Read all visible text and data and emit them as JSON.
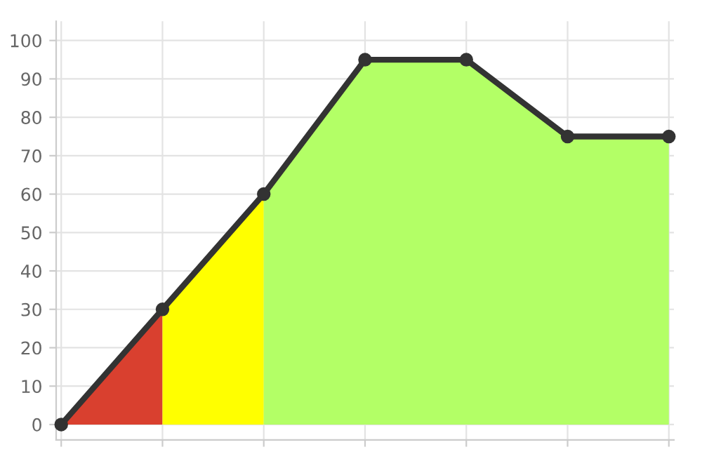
{
  "chart_data": {
    "type": "area",
    "categories": [
      null,
      null,
      null,
      null,
      null,
      null,
      null
    ],
    "series": [
      {
        "color": "#d9402f",
        "values": [
          0,
          30,
          null,
          null,
          null,
          null,
          null
        ]
      },
      {
        "color": "#ffff00",
        "values": [
          null,
          30,
          60,
          null,
          null,
          null,
          null
        ]
      },
      {
        "color": "#b3ff66",
        "values": [
          null,
          null,
          60,
          95,
          95,
          75,
          75
        ]
      },
      {
        "type": "line",
        "color": "#333333",
        "values": [
          0,
          30,
          60,
          95,
          95,
          75,
          75
        ],
        "marker": "circle"
      }
    ],
    "ylim": [
      -4,
      105
    ],
    "yticks": [
      0,
      10,
      20,
      30,
      40,
      50,
      60,
      70,
      80,
      90,
      100
    ],
    "grid": true,
    "tick_labels": "y"
  }
}
